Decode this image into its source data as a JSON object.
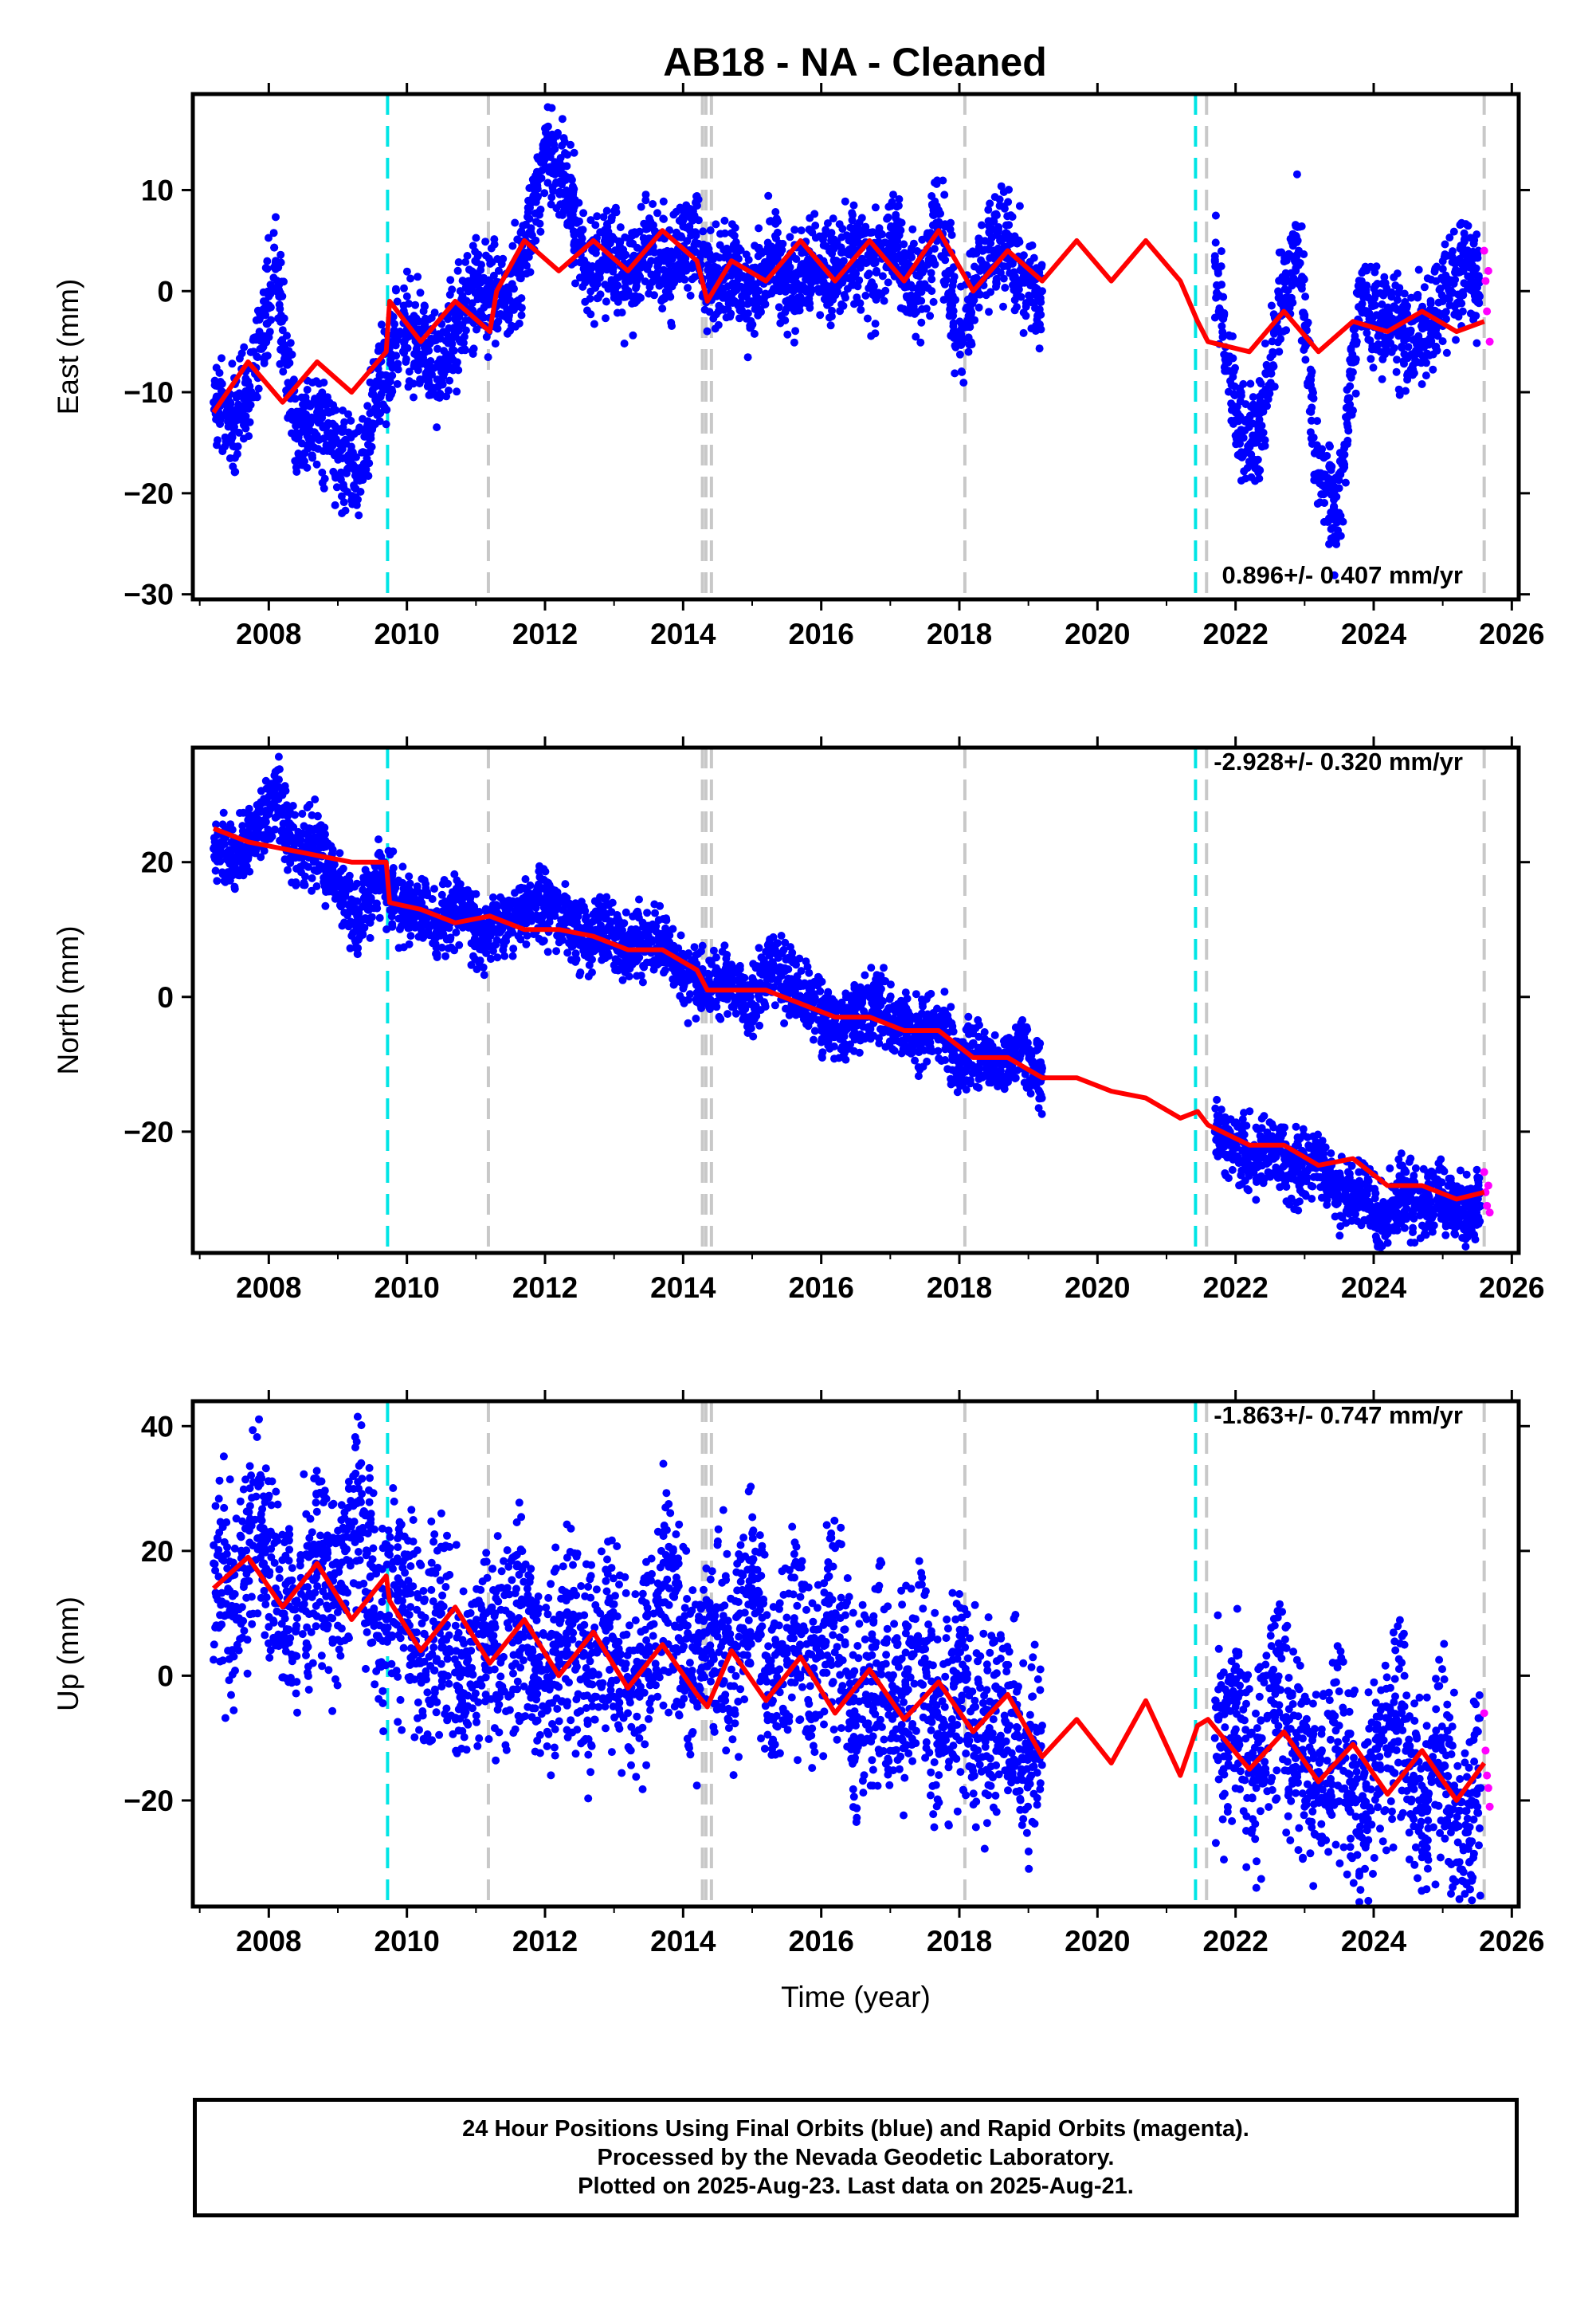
{
  "title": "AB18  - NA - Cleaned",
  "footer": {
    "line1": "24 Hour Positions Using Final Orbits (blue) and Rapid Orbits (magenta).",
    "line2": "Processed by the Nevada Geodetic Laboratory.",
    "line3": "Plotted on 2025-Aug-23. Last data on 2025-Aug-21."
  },
  "colors": {
    "final_orbits": "#0000ff",
    "rapid_orbits": "#ff00ff",
    "model_fit": "#ff0000",
    "equipment_change": "#00e5e5",
    "other_event": "#c8c8c8"
  },
  "chart_data": [
    {
      "type": "scatter",
      "panel": "east",
      "ylabel": "East (mm)",
      "xlabel": "",
      "rate_annotation": "0.896+/- 0.407 mm/yr",
      "xlim": [
        2006.9,
        2026.1
      ],
      "ylim": [
        -30.5,
        19.5
      ],
      "xticks": [
        2008,
        2010,
        2012,
        2014,
        2016,
        2018,
        2020,
        2022,
        2024,
        2026
      ],
      "yticks": [
        -30,
        -20,
        -10,
        0,
        10
      ],
      "cyan_dashed_lines": [
        2009.72,
        2021.42
      ],
      "gray_dashed_lines": [
        2011.18,
        2014.28,
        2014.33,
        2014.41,
        2018.08,
        2021.58,
        2025.6
      ],
      "series": [
        {
          "name": "Final Orbits",
          "x": [
            2007.2,
            2007.5,
            2007.8,
            2008.1,
            2008.4,
            2008.7,
            2009.0,
            2009.3,
            2009.6,
            2009.9,
            2010.2,
            2010.5,
            2010.8,
            2011.1,
            2011.4,
            2011.7,
            2012.0,
            2012.3,
            2012.6,
            2012.9,
            2013.2,
            2013.5,
            2013.8,
            2014.1,
            2014.4,
            2014.7,
            2015.0,
            2015.3,
            2015.6,
            2015.9,
            2016.2,
            2016.5,
            2016.8,
            2017.1,
            2017.4,
            2017.7,
            2018.0,
            2018.3,
            2018.6,
            2018.9,
            2019.2,
            2021.7,
            2022.0,
            2022.3,
            2022.6,
            2022.9,
            2023.2,
            2023.5,
            2023.8,
            2024.1,
            2024.4,
            2024.7,
            2025.0,
            2025.3,
            2025.55
          ],
          "y": [
            -11,
            -13,
            -8,
            3,
            -14,
            -12,
            -16,
            -18,
            -9,
            -4,
            -5,
            -8,
            -2,
            0,
            -1,
            3,
            14,
            11,
            2,
            4,
            1,
            5,
            2,
            6,
            0,
            3,
            -1,
            4,
            0,
            3,
            1,
            4,
            2,
            5,
            -1,
            8,
            -5,
            2,
            5,
            2,
            0,
            3,
            -12,
            -15,
            -3,
            5,
            -18,
            -22,
            0,
            -3,
            -4,
            -5,
            -1,
            2,
            1
          ]
        },
        {
          "name": "Rapid Orbits",
          "x": [
            2025.6,
            2025.62,
            2025.64,
            2025.66,
            2025.68
          ],
          "y": [
            4,
            1,
            -2,
            2,
            -5
          ]
        },
        {
          "name": "Model",
          "x": [
            2007.2,
            2007.7,
            2008.2,
            2008.7,
            2009.2,
            2009.7,
            2009.75,
            2010.2,
            2010.7,
            2011.2,
            2011.3,
            2011.7,
            2012.2,
            2012.7,
            2013.2,
            2013.7,
            2014.2,
            2014.35,
            2014.7,
            2015.2,
            2015.7,
            2016.2,
            2016.7,
            2017.2,
            2017.7,
            2018.2,
            2018.7,
            2019.2,
            2019.7,
            2020.2,
            2020.7,
            2021.2,
            2021.45,
            2021.6,
            2022.2,
            2022.7,
            2023.2,
            2023.7,
            2024.2,
            2024.7,
            2025.2,
            2025.6
          ],
          "y": [
            -12,
            -7,
            -11,
            -7,
            -10,
            -6,
            -1,
            -5,
            -1,
            -4,
            0,
            5,
            2,
            5,
            2,
            6,
            3,
            -1,
            3,
            1,
            5,
            1,
            5,
            1,
            6,
            0,
            4,
            1,
            5,
            1,
            5,
            1,
            -3,
            -5,
            -6,
            -2,
            -6,
            -3,
            -4,
            -2,
            -4,
            -3
          ]
        }
      ]
    },
    {
      "type": "scatter",
      "panel": "north",
      "ylabel": "North (mm)",
      "xlabel": "",
      "rate_annotation": "-2.928+/- 0.320 mm/yr",
      "xlim": [
        2006.9,
        2026.1
      ],
      "ylim": [
        -38,
        37
      ],
      "xticks": [
        2008,
        2010,
        2012,
        2014,
        2016,
        2018,
        2020,
        2022,
        2024,
        2026
      ],
      "yticks": [
        -20,
        0,
        20
      ],
      "cyan_dashed_lines": [
        2009.72,
        2021.42
      ],
      "gray_dashed_lines": [
        2011.18,
        2014.28,
        2014.33,
        2014.41,
        2018.08,
        2021.58,
        2025.6
      ],
      "series": [
        {
          "name": "Final Orbits",
          "x": [
            2007.2,
            2007.5,
            2007.8,
            2008.1,
            2008.4,
            2008.7,
            2009.0,
            2009.3,
            2009.6,
            2009.9,
            2010.2,
            2010.5,
            2010.8,
            2011.1,
            2011.4,
            2011.7,
            2012.0,
            2012.3,
            2012.6,
            2012.9,
            2013.2,
            2013.5,
            2013.8,
            2014.1,
            2014.4,
            2014.7,
            2015.0,
            2015.3,
            2015.6,
            2015.9,
            2016.2,
            2016.5,
            2016.8,
            2017.1,
            2017.4,
            2017.7,
            2018.0,
            2018.3,
            2018.6,
            2018.9,
            2019.2,
            2021.7,
            2022.0,
            2022.3,
            2022.6,
            2022.9,
            2023.2,
            2023.5,
            2023.8,
            2024.1,
            2024.4,
            2024.7,
            2025.0,
            2025.3,
            2025.55
          ],
          "y": [
            22,
            20,
            24,
            30,
            21,
            23,
            17,
            11,
            18,
            14,
            13,
            11,
            14,
            9,
            11,
            13,
            14,
            11,
            8,
            10,
            7,
            9,
            6,
            3,
            1,
            2,
            -1,
            5,
            1,
            -2,
            -5,
            -3,
            -1,
            -4,
            -6,
            -3,
            -10,
            -8,
            -11,
            -7,
            -12,
            -20,
            -22,
            -24,
            -22,
            -26,
            -24,
            -30,
            -28,
            -34,
            -29,
            -31,
            -29,
            -32,
            -31
          ]
        },
        {
          "name": "Rapid Orbits",
          "x": [
            2025.6,
            2025.62,
            2025.64,
            2025.66,
            2025.68
          ],
          "y": [
            -26,
            -29,
            -31,
            -28,
            -32
          ]
        },
        {
          "name": "Model",
          "x": [
            2007.2,
            2007.7,
            2008.2,
            2008.7,
            2009.2,
            2009.7,
            2009.75,
            2010.2,
            2010.7,
            2011.2,
            2011.7,
            2012.2,
            2012.7,
            2013.2,
            2013.7,
            2014.2,
            2014.35,
            2014.7,
            2015.2,
            2015.7,
            2016.2,
            2016.7,
            2017.2,
            2017.7,
            2018.2,
            2018.7,
            2019.2,
            2019.7,
            2020.2,
            2020.7,
            2021.2,
            2021.45,
            2021.6,
            2022.2,
            2022.7,
            2023.2,
            2023.7,
            2024.2,
            2024.7,
            2025.2,
            2025.6
          ],
          "y": [
            25,
            23,
            22,
            21,
            20,
            20,
            14,
            13,
            11,
            12,
            10,
            10,
            9,
            7,
            7,
            4,
            1,
            1,
            1,
            -1,
            -3,
            -3,
            -5,
            -5,
            -9,
            -9,
            -12,
            -12,
            -14,
            -15,
            -18,
            -17,
            -19,
            -22,
            -22,
            -25,
            -24,
            -28,
            -28,
            -30,
            -29
          ]
        }
      ]
    },
    {
      "type": "scatter",
      "panel": "up",
      "ylabel": "Up (mm)",
      "xlabel": "Time (year)",
      "rate_annotation": "-1.863+/- 0.747 mm/yr",
      "xlim": [
        2006.9,
        2026.1
      ],
      "ylim": [
        -37,
        44
      ],
      "xticks": [
        2008,
        2010,
        2012,
        2014,
        2016,
        2018,
        2020,
        2022,
        2024,
        2026
      ],
      "yticks": [
        -20,
        0,
        20,
        40
      ],
      "cyan_dashed_lines": [
        2009.72,
        2021.42
      ],
      "gray_dashed_lines": [
        2011.18,
        2014.28,
        2014.33,
        2014.41,
        2018.08,
        2021.58,
        2025.6
      ],
      "series": [
        {
          "name": "Final Orbits",
          "x": [
            2007.2,
            2007.5,
            2007.8,
            2008.1,
            2008.4,
            2008.7,
            2009.0,
            2009.3,
            2009.6,
            2009.9,
            2010.2,
            2010.5,
            2010.8,
            2011.1,
            2011.4,
            2011.7,
            2012.0,
            2012.3,
            2012.6,
            2012.9,
            2013.2,
            2013.5,
            2013.8,
            2014.1,
            2014.4,
            2014.7,
            2015.0,
            2015.3,
            2015.6,
            2015.9,
            2016.2,
            2016.5,
            2016.8,
            2017.1,
            2017.4,
            2017.7,
            2018.0,
            2018.3,
            2018.6,
            2018.9,
            2019.2,
            2021.7,
            2022.0,
            2022.3,
            2022.6,
            2022.9,
            2023.2,
            2023.5,
            2023.8,
            2024.1,
            2024.4,
            2024.7,
            2025.0,
            2025.3,
            2025.55
          ],
          "y": [
            18,
            10,
            25,
            14,
            8,
            20,
            12,
            30,
            6,
            15,
            2,
            10,
            -4,
            8,
            3,
            12,
            -2,
            6,
            0,
            9,
            -6,
            4,
            14,
            -2,
            8,
            1,
            16,
            -4,
            6,
            0,
            10,
            -8,
            2,
            -5,
            5,
            -12,
            0,
            -10,
            -3,
            -15,
            -8,
            -10,
            -5,
            -18,
            -2,
            -12,
            -20,
            -8,
            -25,
            -15,
            -6,
            -22,
            -12,
            -28,
            -18
          ]
        },
        {
          "name": "Rapid Orbits",
          "x": [
            2025.6,
            2025.62,
            2025.64,
            2025.66,
            2025.68
          ],
          "y": [
            -6,
            -12,
            -16,
            -18,
            -21
          ]
        },
        {
          "name": "Model",
          "x": [
            2007.2,
            2007.7,
            2008.2,
            2008.7,
            2009.2,
            2009.7,
            2009.75,
            2010.2,
            2010.7,
            2011.2,
            2011.7,
            2012.2,
            2012.7,
            2013.2,
            2013.7,
            2014.2,
            2014.35,
            2014.7,
            2015.2,
            2015.7,
            2016.2,
            2016.7,
            2017.2,
            2017.7,
            2018.2,
            2018.7,
            2019.2,
            2019.7,
            2020.2,
            2020.7,
            2021.2,
            2021.45,
            2021.6,
            2022.2,
            2022.7,
            2023.2,
            2023.7,
            2024.2,
            2024.7,
            2025.2,
            2025.6
          ],
          "y": [
            14,
            19,
            11,
            18,
            9,
            16,
            12,
            4,
            11,
            2,
            9,
            0,
            7,
            -2,
            5,
            -3,
            -5,
            4,
            -4,
            3,
            -6,
            1,
            -7,
            -1,
            -9,
            -3,
            -13,
            -7,
            -14,
            -4,
            -16,
            -8,
            -7,
            -15,
            -9,
            -17,
            -11,
            -19,
            -12,
            -20,
            -14
          ]
        }
      ]
    }
  ]
}
